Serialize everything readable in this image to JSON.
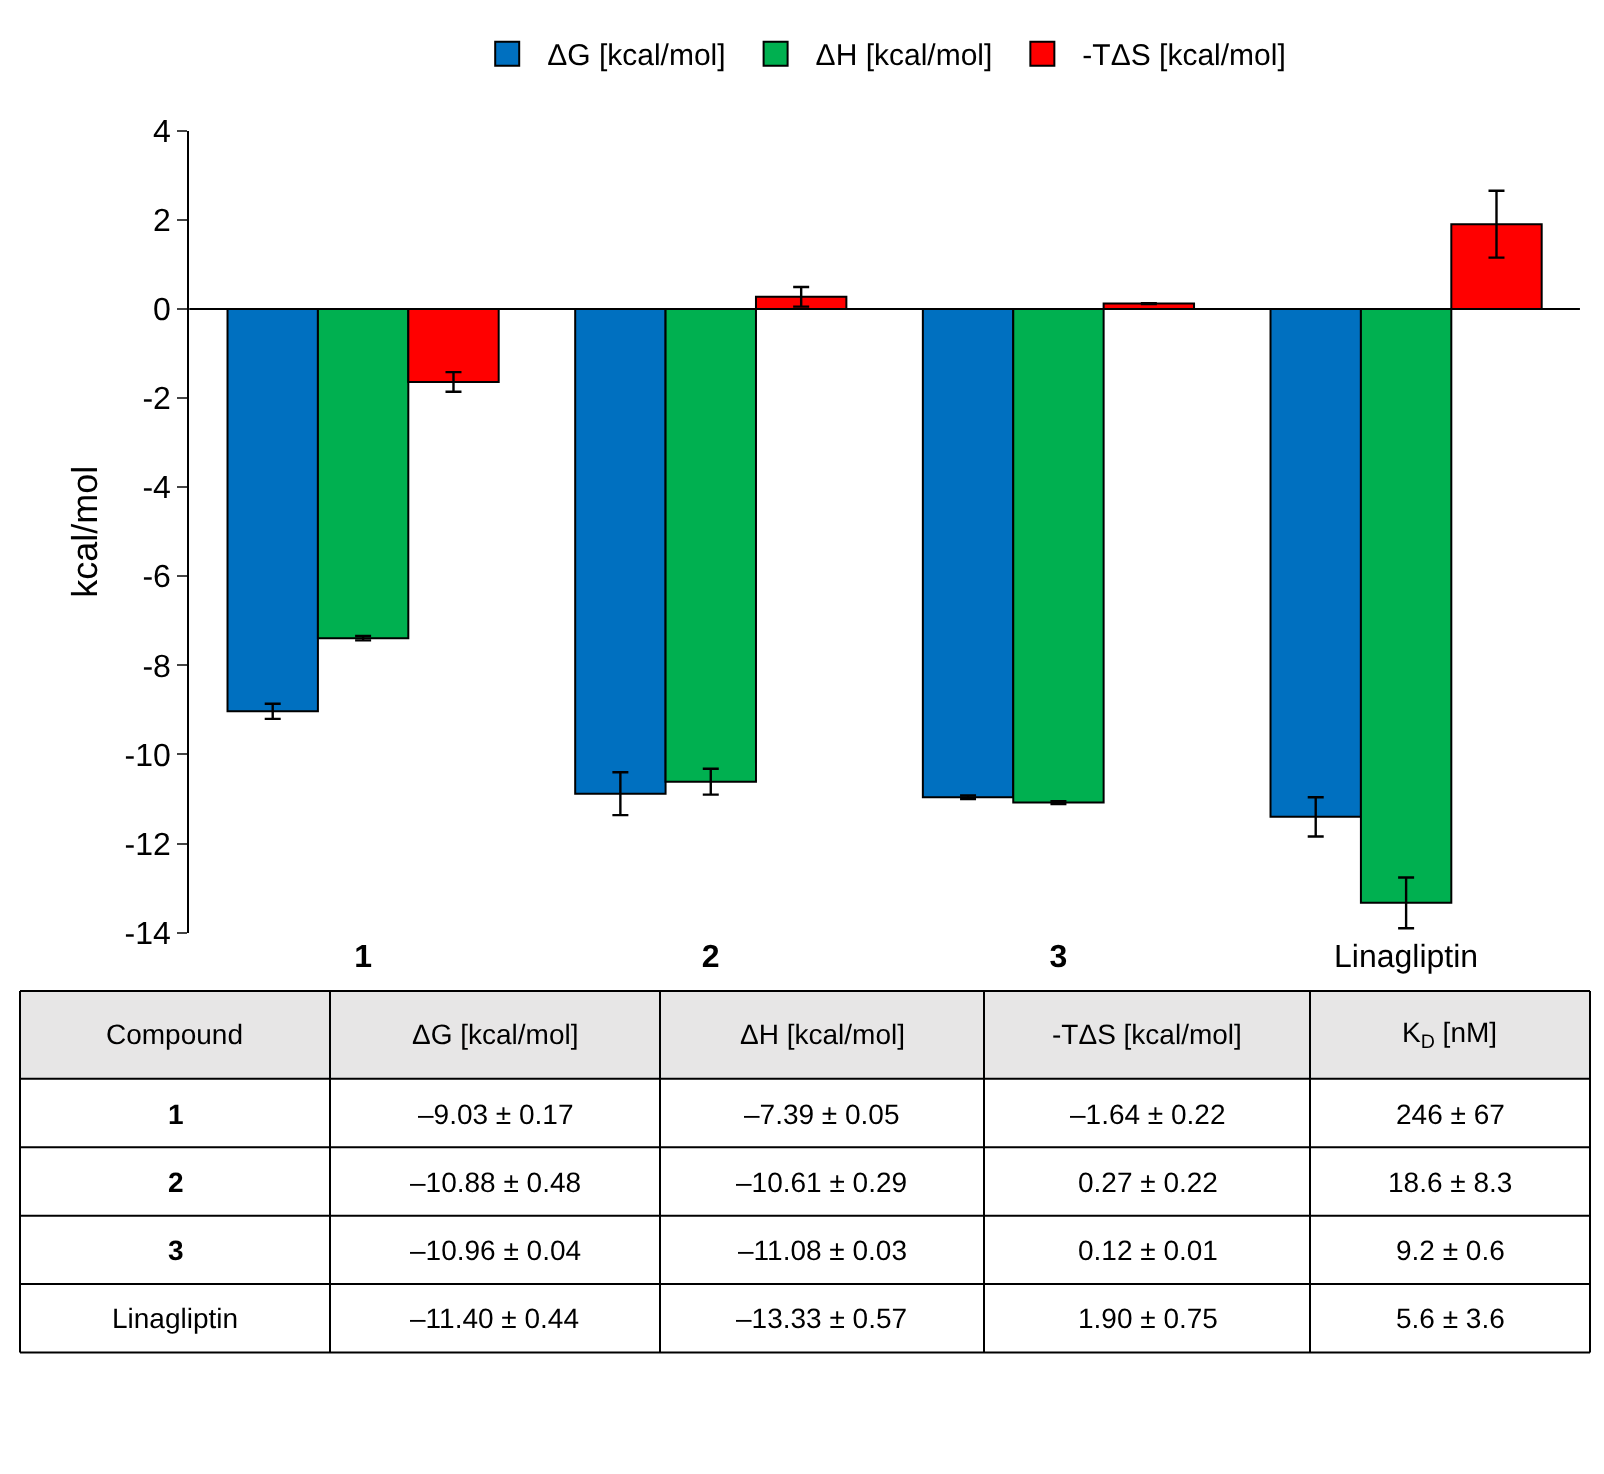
{
  "chart_data": [
    {
      "type": "bar",
      "ylabel": "kcal/mol",
      "categories": [
        "1",
        "2",
        "3",
        "Linagliptin"
      ],
      "series": [
        {
          "name": "ΔG [kcal/mol]",
          "color": "#0070c0",
          "values": [
            -9.03,
            -10.88,
            -10.96,
            -11.4
          ],
          "errors": [
            0.17,
            0.48,
            0.04,
            0.44
          ]
        },
        {
          "name": "ΔH [kcal/mol]",
          "color": "#00b050",
          "values": [
            -7.39,
            -10.61,
            -11.08,
            -13.33
          ],
          "errors": [
            0.05,
            0.29,
            0.03,
            0.57
          ]
        },
        {
          "name": "-TΔS [kcal/mol]",
          "color": "#ff0000",
          "values": [
            -1.64,
            0.27,
            0.12,
            1.9
          ],
          "errors": [
            0.22,
            0.22,
            0.01,
            0.75
          ]
        }
      ],
      "ylim": [
        -14,
        4
      ],
      "yticks": [
        -14,
        -12,
        -10,
        -8,
        -6,
        -4,
        -2,
        0,
        2,
        4
      ],
      "legend": "top"
    },
    {
      "type": "other",
      "annotations": [
        "Compound",
        "ΔG [kcal/mol]",
        "ΔH [kcal/mol]",
        "-TΔS [kcal/mol]",
        "K$_{D}$ [nM]",
        "1",
        "–9.03 ± 0.17",
        "–7.39 ± 0.05",
        "–1.64 ± 0.22",
        "246 ± 67",
        "2",
        "–10.88 ± 0.48",
        "–10.61 ± 0.29",
        "0.27 ± 0.22",
        "18.6 ± 8.3",
        "3",
        "–10.96 ± 0.04",
        "–11.08 ± 0.03",
        "0.12 ± 0.01",
        "9.2 ± 0.6",
        "Linagliptin",
        "–11.40 ± 0.44",
        "–13.33 ± 0.57",
        "1.90 ± 0.75",
        "5.6 ± 3.6"
      ]
    }
  ]
}
